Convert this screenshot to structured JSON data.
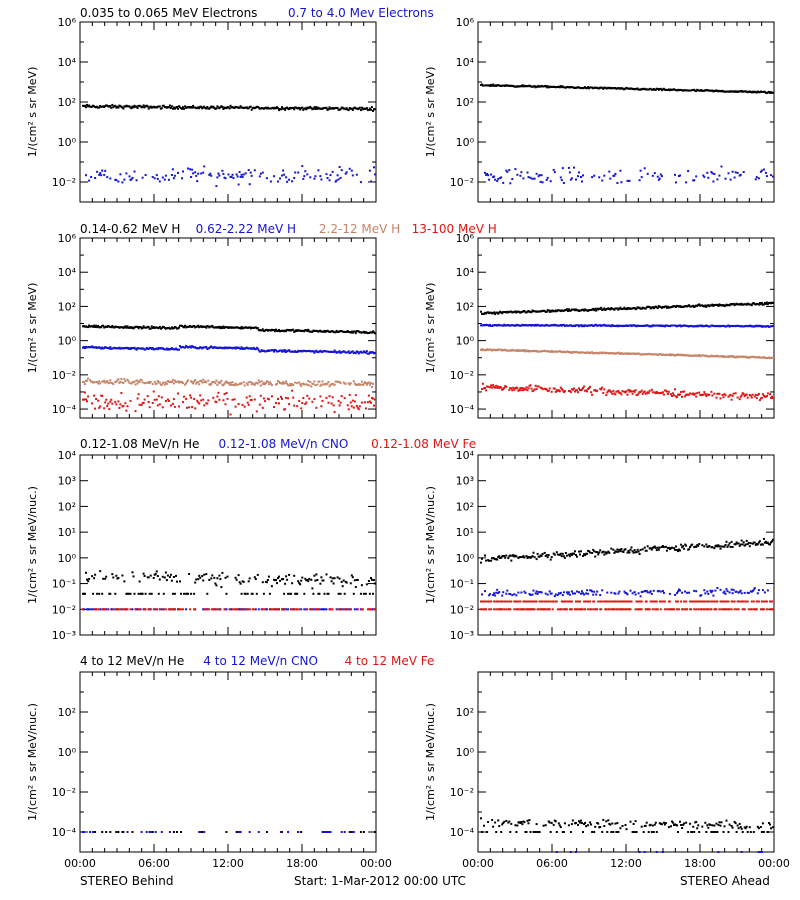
{
  "colors": {
    "black": "#000000",
    "blue": "#1414d6",
    "tan": "#c68468",
    "red": "#e21414"
  },
  "legends": [
    [
      {
        "text": "0.035 to 0.065 MeV Electrons",
        "color": "black"
      },
      {
        "text": "0.7 to 4.0 Mev Electrons",
        "color": "blue"
      }
    ],
    [
      {
        "text": "0.14-0.62 MeV H",
        "color": "black"
      },
      {
        "text": "0.62-2.22 MeV H",
        "color": "blue"
      },
      {
        "text": "2.2-12 MeV H",
        "color": "tan"
      },
      {
        "text": "13-100 MeV H",
        "color": "red"
      }
    ],
    [
      {
        "text": "0.12-1.08 MeV/n He",
        "color": "black"
      },
      {
        "text": "0.12-1.08 MeV/n CNO",
        "color": "blue"
      },
      {
        "text": "0.12-1.08 MeV Fe",
        "color": "red"
      }
    ],
    [
      {
        "text": "4 to 12 MeV/n He",
        "color": "black"
      },
      {
        "text": "4 to 12 MeV/n CNO",
        "color": "blue"
      },
      {
        "text": "4 to 12 MeV Fe",
        "color": "red"
      }
    ]
  ],
  "footer": {
    "left": "STEREO Behind",
    "center": "Start:  1-Mar-2012 00:00 UTC",
    "right": "STEREO Ahead"
  },
  "x_tick_labels": [
    "00:00",
    "06:00",
    "12:00",
    "18:00",
    "00:00"
  ],
  "chart_data": [
    {
      "id": "r1-behind",
      "type": "scatter",
      "log_y": true,
      "ylim": [
        0.001,
        1000000
      ],
      "xlim_hours": [
        0,
        24
      ],
      "ylabel": "1/(cm² s sr MeV)",
      "ytick_exponents": [
        -2,
        0,
        2,
        4,
        6
      ],
      "tick_base": "10",
      "series": [
        {
          "color": "black",
          "start": 60,
          "end": 45,
          "scatter": 0.06,
          "density": 1.0,
          "floor": null
        },
        {
          "color": "blue",
          "start": 0.02,
          "end": 0.02,
          "scatter": 0.3,
          "density": 0.45,
          "floor": null
        }
      ]
    },
    {
      "id": "r1-ahead",
      "type": "scatter",
      "log_y": true,
      "ylim": [
        0.001,
        1000000
      ],
      "xlim_hours": [
        0,
        24
      ],
      "ylabel": "1/(cm² s sr MeV)",
      "ytick_exponents": [
        -2,
        0,
        2,
        4,
        6
      ],
      "tick_base": "10",
      "series": [
        {
          "color": "black",
          "start": 700,
          "end": 300,
          "scatter": 0.03,
          "density": 1.0,
          "floor": null
        },
        {
          "color": "blue",
          "start": 0.02,
          "end": 0.02,
          "scatter": 0.3,
          "density": 0.45,
          "floor": null
        }
      ]
    },
    {
      "id": "r2-behind",
      "type": "scatter",
      "log_y": true,
      "ylim": [
        3e-05,
        1000000
      ],
      "xlim_hours": [
        0,
        24
      ],
      "ylabel": "1/(cm² s sr MeV)",
      "ytick_exponents": [
        -4,
        -2,
        0,
        2,
        4,
        6
      ],
      "tick_base": "10",
      "series": [
        {
          "color": "black",
          "start": 7,
          "end": 3,
          "scatter": 0.05,
          "density": 1.0,
          "floor": null
        },
        {
          "color": "blue",
          "start": 0.4,
          "end": 0.2,
          "scatter": 0.05,
          "density": 1.0,
          "floor": null
        },
        {
          "color": "tan",
          "start": 0.004,
          "end": 0.003,
          "scatter": 0.12,
          "density": 0.9,
          "floor": null
        },
        {
          "color": "red",
          "start": 0.00025,
          "end": 0.00025,
          "scatter": 0.4,
          "density": 0.6,
          "floor": null
        }
      ]
    },
    {
      "id": "r2-ahead",
      "type": "scatter",
      "log_y": true,
      "ylim": [
        3e-05,
        1000000
      ],
      "xlim_hours": [
        0,
        24
      ],
      "ylabel": "1/(cm² s sr MeV)",
      "ytick_exponents": [
        -4,
        -2,
        0,
        2,
        4,
        6
      ],
      "tick_base": "10",
      "series": [
        {
          "color": "black",
          "start": 40,
          "end": 150,
          "scatter": 0.05,
          "density": 1.0,
          "floor": null
        },
        {
          "color": "blue",
          "start": 8,
          "end": 7,
          "scatter": 0.03,
          "density": 1.0,
          "floor": null
        },
        {
          "color": "tan",
          "start": 0.3,
          "end": 0.1,
          "scatter": 0.03,
          "density": 1.0,
          "floor": null
        },
        {
          "color": "red",
          "start": 0.002,
          "end": 0.0005,
          "scatter": 0.15,
          "density": 0.9,
          "floor": null
        }
      ]
    },
    {
      "id": "r3-behind",
      "type": "scatter",
      "log_y": true,
      "ylim": [
        0.001,
        10000
      ],
      "xlim_hours": [
        0,
        24
      ],
      "ylabel": "1/(cm² s sr MeV/nuc.)",
      "ytick_exponents": [
        -3,
        -2,
        -1,
        0,
        1,
        2,
        3,
        4
      ],
      "tick_base": "10",
      "series": [
        {
          "color": "black",
          "start": 0.2,
          "end": 0.12,
          "scatter": 0.18,
          "density": 0.75,
          "floor": 0.04
        },
        {
          "color": "blue",
          "start": 0.01,
          "end": 0.01,
          "scatter": 0.0,
          "density": 0.35,
          "floor": null
        },
        {
          "color": "red",
          "start": 0.01,
          "end": 0.01,
          "scatter": 0.0,
          "density": 0.35,
          "floor": null
        }
      ]
    },
    {
      "id": "r3-ahead",
      "type": "scatter",
      "log_y": true,
      "ylim": [
        0.001,
        10000
      ],
      "xlim_hours": [
        0,
        24
      ],
      "ylabel": "1/(cm² s sr MeV/nuc.)",
      "ytick_exponents": [
        -3,
        -2,
        -1,
        0,
        1,
        2,
        3,
        4
      ],
      "tick_base": "10",
      "series": [
        {
          "color": "black",
          "start": 0.9,
          "end": 4,
          "scatter": 0.1,
          "density": 0.85,
          "floor": null
        },
        {
          "color": "blue",
          "start": 0.04,
          "end": 0.05,
          "scatter": 0.1,
          "density": 0.5,
          "floor": null
        },
        {
          "color": "red",
          "start": 0.02,
          "end": 0.02,
          "scatter": 0.0,
          "density": 0.6,
          "floor": null
        },
        {
          "color": "red",
          "start": 0.01,
          "end": 0.01,
          "scatter": 0.0,
          "density": 0.6,
          "floor": null
        }
      ]
    },
    {
      "id": "r4-behind",
      "type": "scatter",
      "log_y": true,
      "ylim": [
        1e-05,
        10000
      ],
      "xlim_hours": [
        0,
        24
      ],
      "ylabel": "1/(cm² s sr MeV/nuc.)",
      "ytick_exponents": [
        -4,
        -2,
        0,
        2
      ],
      "tick_base": "10",
      "series": [
        {
          "color": "black",
          "start": 0.0001,
          "end": 0.0001,
          "scatter": 0.0,
          "density": 0.1,
          "floor": null
        },
        {
          "color": "blue",
          "start": 0.0001,
          "end": 0.0001,
          "scatter": 0.0,
          "density": 0.05,
          "floor": null
        }
      ]
    },
    {
      "id": "r4-ahead",
      "type": "scatter",
      "log_y": true,
      "ylim": [
        1e-05,
        10000
      ],
      "xlim_hours": [
        0,
        24
      ],
      "ylabel": "1/(cm² s sr MeV/nuc.)",
      "ytick_exponents": [
        -4,
        -2,
        0,
        2
      ],
      "tick_base": "10",
      "series": [
        {
          "color": "black",
          "start": 0.0003,
          "end": 0.0002,
          "scatter": 0.15,
          "density": 0.7,
          "floor": 0.0001
        },
        {
          "color": "blue",
          "start": 1e-05,
          "end": 1e-05,
          "scatter": 0.0,
          "density": 0.05,
          "floor": null
        }
      ]
    }
  ]
}
